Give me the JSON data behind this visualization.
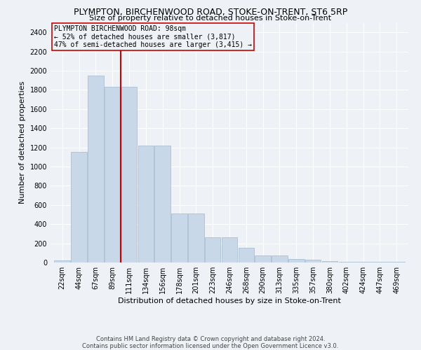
{
  "title": "PLYMPTON, BIRCHENWOOD ROAD, STOKE-ON-TRENT, ST6 5RP",
  "subtitle": "Size of property relative to detached houses in Stoke-on-Trent",
  "xlabel": "Distribution of detached houses by size in Stoke-on-Trent",
  "ylabel": "Number of detached properties",
  "categories": [
    "22sqm",
    "44sqm",
    "67sqm",
    "89sqm",
    "111sqm",
    "134sqm",
    "156sqm",
    "178sqm",
    "201sqm",
    "223sqm",
    "246sqm",
    "268sqm",
    "290sqm",
    "313sqm",
    "335sqm",
    "357sqm",
    "380sqm",
    "402sqm",
    "424sqm",
    "447sqm",
    "469sqm"
  ],
  "values": [
    25,
    1150,
    1950,
    1830,
    1830,
    1220,
    1220,
    510,
    510,
    265,
    265,
    155,
    75,
    75,
    40,
    30,
    15,
    10,
    10,
    10,
    10
  ],
  "bar_color": "#c8d8e8",
  "bar_edgecolor": "#a0b8cc",
  "vline_x": 3.5,
  "vline_color": "#cc0000",
  "annotation_line1": "PLYMPTON BIRCHENWOOD ROAD: 98sqm",
  "annotation_line2": "← 52% of detached houses are smaller (3,817)",
  "annotation_line3": "47% of semi-detached houses are larger (3,415) →",
  "annotation_box_edgecolor": "#cc0000",
  "ylim": [
    0,
    2500
  ],
  "yticks": [
    0,
    200,
    400,
    600,
    800,
    1000,
    1200,
    1400,
    1600,
    1800,
    2000,
    2200,
    2400
  ],
  "background_color": "#eef2f6",
  "grid_color": "#ffffff",
  "footer_line1": "Contains HM Land Registry data © Crown copyright and database right 2024.",
  "footer_line2": "Contains public sector information licensed under the Open Government Licence v3.0.",
  "title_fontsize": 9,
  "subtitle_fontsize": 8,
  "ylabel_fontsize": 8,
  "xlabel_fontsize": 8,
  "tick_fontsize": 7,
  "annotation_fontsize": 7,
  "footer_fontsize": 6
}
